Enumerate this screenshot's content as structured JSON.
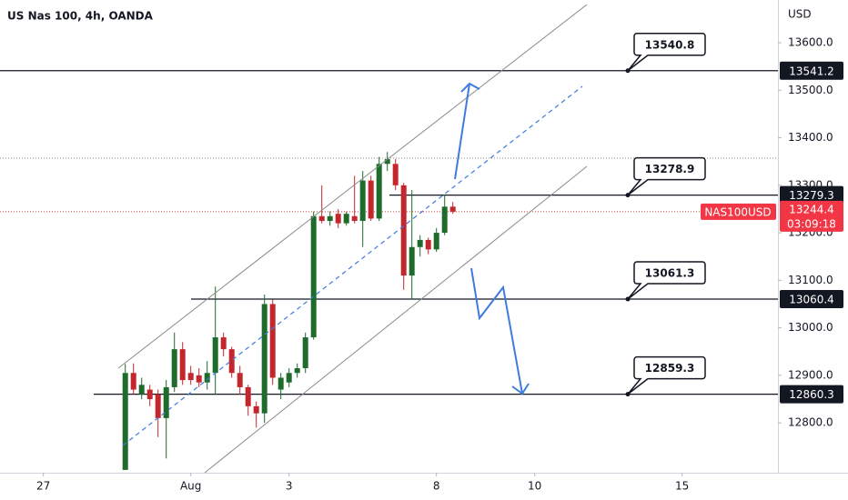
{
  "chart_data": {
    "type": "candlestick",
    "title": "US Nas 100, 4h, OANDA",
    "currency": "USD",
    "x": [
      0,
      1,
      2,
      3,
      4,
      5,
      6,
      7,
      8,
      9,
      10,
      11,
      12,
      13,
      14,
      15,
      16,
      17,
      18,
      19,
      20,
      21,
      22,
      23,
      24,
      25,
      26,
      27,
      28,
      29,
      30,
      31,
      32,
      33,
      34,
      35,
      36,
      37,
      38,
      39,
      40
    ],
    "open": [
      12701,
      12905,
      12860,
      12870,
      12860,
      12810,
      12875,
      12955,
      12905,
      12900,
      12885,
      12905,
      12980,
      12955,
      12905,
      12875,
      12835,
      12820,
      13050,
      12870,
      12885,
      12905,
      12915,
      12980,
      13235,
      13225,
      13240,
      13220,
      13235,
      13225,
      13310,
      13230,
      13345,
      13345,
      13300,
      13110,
      13170,
      13185,
      13165,
      13200,
      13255
    ],
    "high": [
      12924,
      12925,
      12895,
      12880,
      12870,
      12890,
      12990,
      12970,
      12920,
      12915,
      12930,
      13087,
      12990,
      12960,
      12920,
      12880,
      12845,
      13070,
      13060,
      12905,
      12915,
      12925,
      12990,
      13245,
      13300,
      13245,
      13250,
      13245,
      13320,
      13330,
      13320,
      13360,
      13370,
      13355,
      13305,
      13290,
      13195,
      13190,
      13210,
      13280,
      13265
    ],
    "low": [
      12701,
      12860,
      12850,
      12835,
      12770,
      12725,
      12865,
      12880,
      12880,
      12875,
      12870,
      12860,
      12940,
      12895,
      12860,
      12815,
      12790,
      12800,
      12880,
      12850,
      12875,
      12895,
      12905,
      12975,
      13220,
      13215,
      13210,
      13215,
      13220,
      13170,
      13225,
      13225,
      13330,
      13290,
      13080,
      13060,
      13150,
      13155,
      13160,
      13195,
      13240
    ],
    "close": [
      12905,
      12870,
      12880,
      12850,
      12810,
      12875,
      12955,
      12890,
      12890,
      12885,
      12905,
      12980,
      12955,
      12905,
      12875,
      12835,
      12820,
      13050,
      12895,
      12895,
      12905,
      12915,
      12980,
      13235,
      13225,
      13235,
      13220,
      13240,
      13225,
      13310,
      13230,
      13345,
      13355,
      13300,
      13110,
      13170,
      13185,
      13165,
      13200,
      13255,
      13244.4
    ],
    "up_color": "#1f6b2b",
    "down_color": "#c3272d",
    "xlim": [
      -15.3,
      79.7
    ],
    "xticks": [
      {
        "value": -10,
        "label": "27"
      },
      {
        "value": 8,
        "label": "Aug"
      },
      {
        "value": 20,
        "label": "3"
      },
      {
        "value": 38,
        "label": "8"
      },
      {
        "value": 50,
        "label": "10"
      },
      {
        "value": 68,
        "label": "15"
      }
    ],
    "ylim": [
      12695,
      13690
    ],
    "yticks": [
      {
        "value": 12800,
        "label": "12800.0"
      },
      {
        "value": 12900,
        "label": "12900.0"
      },
      {
        "value": 13000,
        "label": "13000.0"
      },
      {
        "value": 13100,
        "label": "13100.0"
      },
      {
        "value": 13200,
        "label": "13200.0"
      },
      {
        "value": 13300,
        "label": "13300.0"
      },
      {
        "value": 13400,
        "label": "13400.0"
      },
      {
        "value": 13500,
        "label": "13500.0"
      },
      {
        "value": 13600,
        "label": "13600.0"
      }
    ],
    "levels": [
      {
        "value": 13541.2,
        "callout": 13540.8
      },
      {
        "value": 13279.3,
        "callout": 13278.9
      },
      {
        "value": 13060.4,
        "callout": 13061.3
      },
      {
        "value": 12860.3,
        "callout": 12859.3
      }
    ],
    "session_high_line": 13357,
    "last": {
      "symbol": "NAS100USD",
      "value": 13244.4,
      "countdown": "03:09:18"
    }
  }
}
